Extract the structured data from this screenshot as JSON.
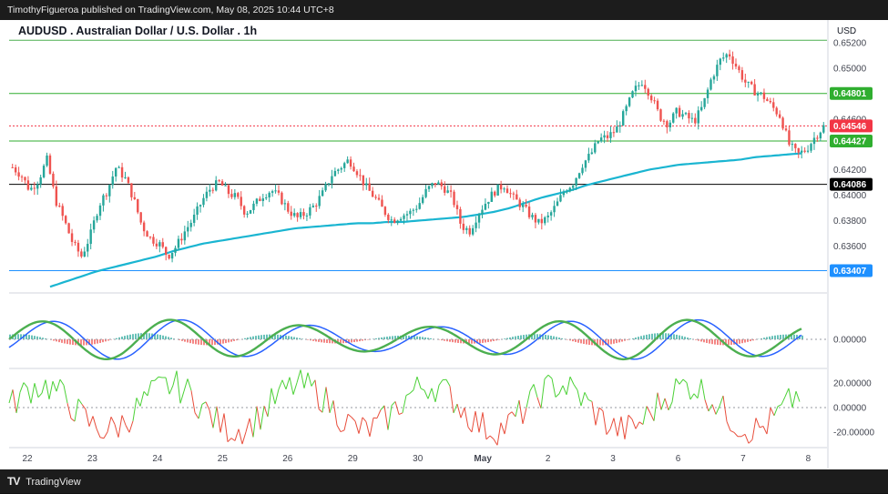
{
  "header": {
    "published": "TimothyFigueroa published on TradingView.com, May 08, 2025 10:44 UTC+8",
    "title": "AUDUSD . Australian Dollar / U.S. Dollar . 1h",
    "currency": "USD"
  },
  "footer": {
    "logo": "TradingView",
    "logo_icon": "tradingview-logo-icon"
  },
  "chart_data": {
    "type": "candlestick",
    "symbol": "AUDUSD",
    "interval": "1h",
    "x_ticks": [
      "22",
      "23",
      "24",
      "25",
      "26",
      "29",
      "30",
      "May",
      "2",
      "3",
      "6",
      "7",
      "8"
    ],
    "price_axis": {
      "ticks": [
        "0.65200",
        "0.65000",
        "0.64600",
        "0.64200",
        "0.64000",
        "0.63800",
        "0.63600"
      ],
      "range": [
        0.6326,
        0.6525
      ]
    },
    "price_levels": [
      {
        "label": "0.64801",
        "value": 0.64801,
        "color": "#2fae2f"
      },
      {
        "label": "0.64546",
        "value": 0.64546,
        "color": "#f23645"
      },
      {
        "label": "0.64427",
        "value": 0.64427,
        "color": "#2fae2f"
      },
      {
        "label": "0.64086",
        "value": 0.64086,
        "color": "#000000"
      },
      {
        "label": "0.63407",
        "value": 0.63407,
        "color": "#1e90ff"
      }
    ],
    "top_level_line": 0.6522,
    "close_series": [
      0.6422,
      0.6416,
      0.6404,
      0.6412,
      0.6428,
      0.6396,
      0.638,
      0.6362,
      0.6352,
      0.6368,
      0.6392,
      0.6404,
      0.6422,
      0.6414,
      0.6398,
      0.6376,
      0.6366,
      0.6362,
      0.6352,
      0.636,
      0.6372,
      0.6382,
      0.6396,
      0.6406,
      0.641,
      0.6402,
      0.6398,
      0.6386,
      0.6392,
      0.64,
      0.6404,
      0.6398,
      0.6388,
      0.6382,
      0.6386,
      0.6392,
      0.6402,
      0.6416,
      0.6422,
      0.6428,
      0.6418,
      0.6406,
      0.6398,
      0.6388,
      0.638,
      0.6384,
      0.6386,
      0.6392,
      0.6404,
      0.641,
      0.6406,
      0.6398,
      0.6376,
      0.6372,
      0.6386,
      0.6396,
      0.6404,
      0.6408,
      0.6398,
      0.6392,
      0.6384,
      0.6378,
      0.6382,
      0.6392,
      0.6404,
      0.641,
      0.6424,
      0.6432,
      0.6444,
      0.6446,
      0.6452,
      0.6466,
      0.6482,
      0.649,
      0.6478,
      0.6462,
      0.6456,
      0.6466,
      0.6462,
      0.6458,
      0.647,
      0.6492,
      0.6506,
      0.6512,
      0.65,
      0.6488,
      0.6482,
      0.6478,
      0.647,
      0.6462,
      0.644,
      0.6432,
      0.6436,
      0.6446,
      0.6454
    ],
    "ema_series": [
      0.6328,
      0.6332,
      0.6336,
      0.634,
      0.6343,
      0.6346,
      0.6349,
      0.6352,
      0.6356,
      0.6359,
      0.6362,
      0.6364,
      0.6366,
      0.6368,
      0.637,
      0.6372,
      0.6374,
      0.6375,
      0.6376,
      0.6377,
      0.6378,
      0.6378,
      0.6379,
      0.6379,
      0.638,
      0.6381,
      0.6382,
      0.6383,
      0.6385,
      0.6387,
      0.639,
      0.6394,
      0.6398,
      0.6401,
      0.6404,
      0.6408,
      0.6411,
      0.6414,
      0.6417,
      0.642,
      0.6422,
      0.6424,
      0.6425,
      0.6426,
      0.6427,
      0.6428,
      0.643,
      0.6431,
      0.6432,
      0.6433
    ],
    "oscillator_1": {
      "zero_label": "0.00000",
      "line_up_color": "#4caf50",
      "line_down_color": "#b71c1c",
      "signal_color": "#2962ff"
    },
    "oscillator_2": {
      "ticks": [
        "20.00000",
        "0.00000",
        "-20.00000"
      ],
      "up_color": "#4cd137",
      "down_color": "#e84e3c"
    }
  }
}
